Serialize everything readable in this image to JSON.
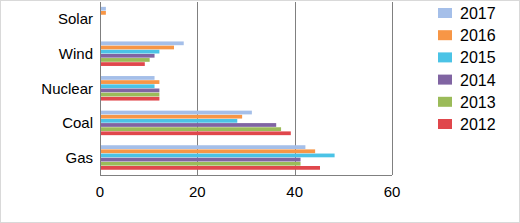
{
  "chart_data": {
    "type": "bar",
    "orientation": "horizontal",
    "categories": [
      "Gas",
      "Coal",
      "Nuclear",
      "Wind",
      "Solar"
    ],
    "series": [
      {
        "name": "2012",
        "color": "#e0474c",
        "values": [
          45,
          39,
          12,
          9,
          0
        ]
      },
      {
        "name": "2013",
        "color": "#9bbb59",
        "values": [
          41,
          37,
          12,
          10,
          0
        ]
      },
      {
        "name": "2014",
        "color": "#8064a2",
        "values": [
          41,
          36,
          12,
          11,
          0
        ]
      },
      {
        "name": "2015",
        "color": "#4bc3e6",
        "values": [
          48,
          28,
          11,
          12,
          0
        ]
      },
      {
        "name": "2016",
        "color": "#f79646",
        "values": [
          44,
          29,
          12,
          15,
          1
        ]
      },
      {
        "name": "2017",
        "color": "#a5bfe9",
        "values": [
          42,
          31,
          11,
          17,
          1
        ]
      }
    ],
    "xlim": [
      0,
      60
    ],
    "xticks": [
      0,
      20,
      40,
      60
    ],
    "grid": true,
    "legend": "right"
  }
}
